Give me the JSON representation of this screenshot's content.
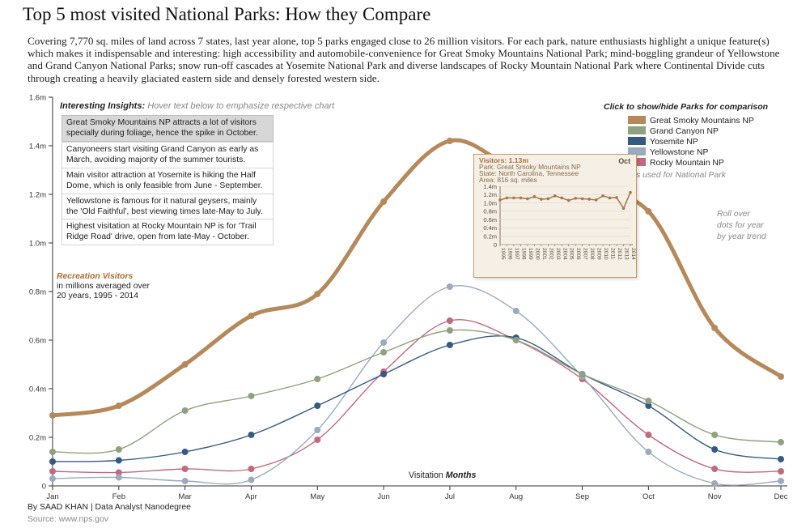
{
  "title": "Top 5 most visited National Parks: How they Compare",
  "intro": "Covering 7,770 sq. miles of land across 7 states, last year alone, top 5 parks engaged close to 26 million visitors. For each park, nature enthusiasts highlight a unique feature(s) which makes it indispensable and interesting: high accessibility and automobile-convenience for Great Smoky Mountains National Park; mind-boggling grandeur of Yellowstone and Grand Canyon National Parks; snow run-off cascades at Yosemite National Park and diverse landscapes of Rocky Mountain National Park where Continental Divide cuts through creating a heavily glaciated eastern side and densely forested western side.",
  "insights": {
    "heading": "Interesting Insights:",
    "hint": "Hover text below to emphasize respective chart",
    "items": [
      "Great Smoky Mountains NP attracts a lot of visitors specially during foliage, hence the spike in October.",
      "Canyoneers start visiting Grand Canyon as early as March, avoiding majority of the summer tourists.",
      "Main visitor attraction at Yosemite is hiking the Half Dome, which is only feasible from June - September.",
      "Yellowstone is famous for it natural geysers, mainly the 'Old Faithful', best viewing times late-May to July.",
      "Highest visitation at Rocky Mountain NP is for 'Trail Ridge Road' drive, open from late-May - October."
    ]
  },
  "legend": {
    "heading": "Click to show/hide Parks for comparison",
    "items": [
      {
        "label": "Great Smoky Mountains NP",
        "color": "#b5895a"
      },
      {
        "label": "Grand Canyon NP",
        "color": "#8fa17e"
      },
      {
        "label": "Yosemite NP",
        "color": "#355a82"
      },
      {
        "label": "Yellowstone NP",
        "color": "#9aabbf"
      },
      {
        "label": "Rocky Mountain NP",
        "color": "#c06a7e"
      }
    ]
  },
  "partial_note": "s used for National Park",
  "y_title_bold": "Recreation Visitors",
  "y_title_rest": [
    "in millions averaged over",
    "20 years, 1995 - 2014"
  ],
  "rollover": [
    "Roll over",
    "dots for year",
    "by year trend"
  ],
  "x_title_plain": "Visitation ",
  "x_title_bold": "Months",
  "credit": "By SAAD KHAN | Data Analyst Nanodegree",
  "source": "Source: www.nps.gov",
  "tooltip": {
    "value_line": "Visitors: 1.13m",
    "park_line": "Park: Great Smoky Mountains NP",
    "state_line": "State: North Carolina, Tennessee",
    "area_line": "Area: 816 sq. miles",
    "month": "Oct",
    "y_ticks": [
      "1.4m",
      "1.2m",
      "1.0m",
      "0.8m",
      "0.6m",
      "0.4m",
      "0.2m",
      "0"
    ],
    "years": [
      "1995",
      "1996",
      "1997",
      "1998",
      "1999",
      "2000",
      "2001",
      "2002",
      "2003",
      "2004",
      "2005",
      "2006",
      "2007",
      "2008",
      "2009",
      "2010",
      "2011",
      "2012",
      "2013",
      "2014"
    ],
    "values": [
      1.07,
      1.12,
      1.12,
      1.12,
      1.1,
      1.15,
      1.09,
      1.1,
      1.17,
      1.12,
      1.06,
      1.11,
      1.1,
      1.09,
      1.07,
      1.17,
      1.12,
      1.13,
      0.87,
      1.25
    ]
  },
  "chart_data": {
    "type": "line",
    "categories": [
      "Jan",
      "Feb",
      "Mar",
      "Apr",
      "May",
      "Jun",
      "Jul",
      "Aug",
      "Sep",
      "Oct",
      "Nov",
      "Dec"
    ],
    "y_ticks": [
      "0",
      "0.2m",
      "0.4m",
      "0.6m",
      "0.8m",
      "1.0m",
      "1.2m",
      "1.4m",
      "1.6m"
    ],
    "ylim": [
      0,
      1.6
    ],
    "series": [
      {
        "name": "Rocky Mountain NP",
        "color": "#c06a7e",
        "values": [
          0.06,
          0.055,
          0.07,
          0.07,
          0.19,
          0.47,
          0.68,
          0.6,
          0.44,
          0.21,
          0.07,
          0.06
        ]
      },
      {
        "name": "Yellowstone NP",
        "color": "#9aabbf",
        "values": [
          0.03,
          0.035,
          0.02,
          0.025,
          0.23,
          0.59,
          0.82,
          0.72,
          0.45,
          0.14,
          0.01,
          0.02
        ]
      },
      {
        "name": "Yosemite NP",
        "color": "#355a82",
        "values": [
          0.1,
          0.105,
          0.14,
          0.21,
          0.33,
          0.46,
          0.58,
          0.61,
          0.46,
          0.33,
          0.15,
          0.11
        ]
      },
      {
        "name": "Grand Canyon NP",
        "color": "#8fa17e",
        "values": [
          0.14,
          0.15,
          0.31,
          0.37,
          0.44,
          0.55,
          0.64,
          0.6,
          0.46,
          0.35,
          0.21,
          0.18
        ]
      },
      {
        "name": "Great Smoky Mountains NP",
        "color": "#b5895a",
        "width": 5,
        "values": [
          0.29,
          0.33,
          0.5,
          0.7,
          0.79,
          1.17,
          1.42,
          1.3,
          1.22,
          1.13,
          0.65,
          0.45
        ]
      }
    ]
  }
}
